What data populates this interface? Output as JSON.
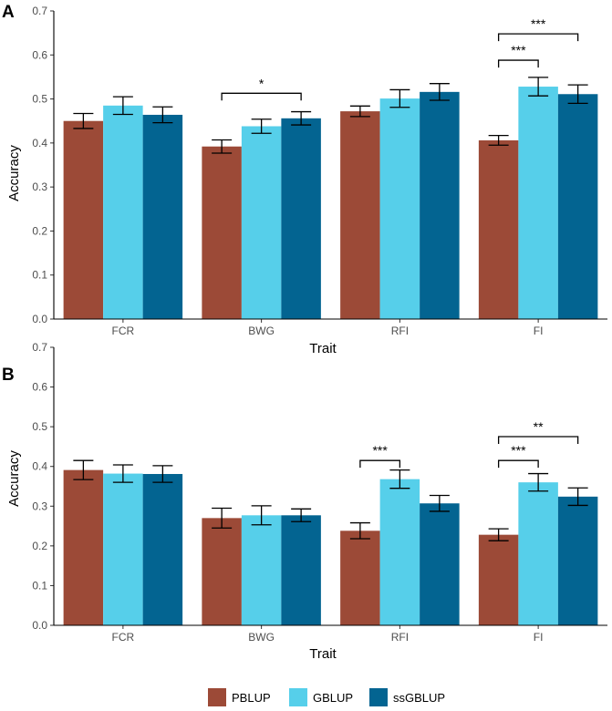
{
  "chart_data": [
    {
      "type": "bar",
      "panel": "A",
      "categories": [
        "FCR",
        "BWG",
        "RFI",
        "FI"
      ],
      "series": [
        {
          "name": "PBLUP",
          "color": "#9c4a37",
          "values": [
            0.45,
            0.392,
            0.472,
            0.406
          ],
          "errors": [
            0.017,
            0.015,
            0.012,
            0.011
          ]
        },
        {
          "name": "GBLUP",
          "color": "#56cfea",
          "values": [
            0.485,
            0.438,
            0.501,
            0.528
          ],
          "errors": [
            0.02,
            0.016,
            0.02,
            0.021
          ]
        },
        {
          "name": "ssGBLUP",
          "color": "#036491",
          "values": [
            0.464,
            0.456,
            0.516,
            0.511
          ],
          "errors": [
            0.018,
            0.015,
            0.019,
            0.021
          ]
        }
      ],
      "significance": [
        {
          "category": "BWG",
          "from": "PBLUP",
          "to": "ssGBLUP",
          "label": "*",
          "y": 0.513
        },
        {
          "category": "FI",
          "from": "PBLUP",
          "to": "GBLUP",
          "label": "***",
          "y": 0.588
        },
        {
          "category": "FI",
          "from": "PBLUP",
          "to": "ssGBLUP",
          "label": "***",
          "y": 0.648
        }
      ],
      "xlabel": "Trait",
      "ylabel": "Accuracy",
      "ylim": [
        0,
        0.7
      ],
      "yticks": [
        "0.0",
        "0.1",
        "0.2",
        "0.3",
        "0.4",
        "0.5",
        "0.6",
        "0.7"
      ],
      "grid": false
    },
    {
      "type": "bar",
      "panel": "B",
      "categories": [
        "FCR",
        "BWG",
        "RFI",
        "FI"
      ],
      "series": [
        {
          "name": "PBLUP",
          "color": "#9c4a37",
          "values": [
            0.391,
            0.27,
            0.238,
            0.228
          ],
          "errors": [
            0.024,
            0.025,
            0.02,
            0.015
          ]
        },
        {
          "name": "GBLUP",
          "color": "#56cfea",
          "values": [
            0.382,
            0.277,
            0.368,
            0.36
          ],
          "errors": [
            0.022,
            0.024,
            0.023,
            0.022
          ]
        },
        {
          "name": "ssGBLUP",
          "color": "#036491",
          "values": [
            0.381,
            0.277,
            0.307,
            0.324
          ],
          "errors": [
            0.021,
            0.016,
            0.02,
            0.022
          ]
        }
      ],
      "significance": [
        {
          "category": "RFI",
          "from": "PBLUP",
          "to": "GBLUP",
          "label": "***",
          "y": 0.415
        },
        {
          "category": "FI",
          "from": "PBLUP",
          "to": "GBLUP",
          "label": "***",
          "y": 0.415
        },
        {
          "category": "FI",
          "from": "PBLUP",
          "to": "ssGBLUP",
          "label": "**",
          "y": 0.475
        }
      ],
      "xlabel": "Trait",
      "ylabel": "Accuracy",
      "ylim": [
        0,
        0.7
      ],
      "yticks": [
        "0.0",
        "0.1",
        "0.2",
        "0.3",
        "0.4",
        "0.5",
        "0.6",
        "0.7"
      ],
      "grid": false
    }
  ],
  "legend": {
    "placement": "bottom",
    "items": [
      {
        "label": "PBLUP",
        "color": "#9c4a37"
      },
      {
        "label": "GBLUP",
        "color": "#56cfea"
      },
      {
        "label": "ssGBLUP",
        "color": "#036491"
      }
    ]
  }
}
